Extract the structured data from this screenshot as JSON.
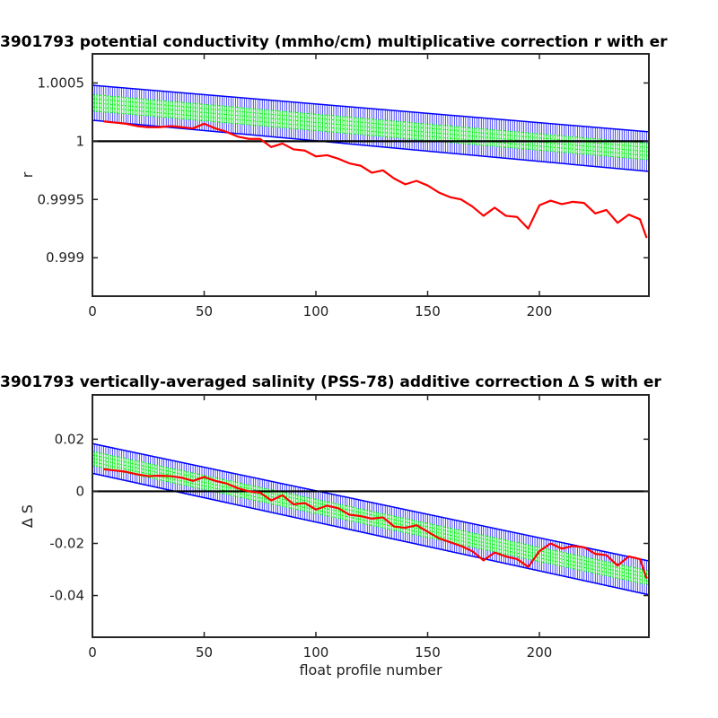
{
  "chart_data": [
    {
      "type": "line",
      "title": "3901793 potential conductivity (mmho/cm) multiplicative correction r with er",
      "xlabel": "",
      "ylabel": "r",
      "xlim": [
        0,
        249
      ],
      "ylim": [
        0.99867,
        1.00075
      ],
      "xticks": [
        0,
        50,
        100,
        150,
        200
      ],
      "xtick_labels": [
        "0",
        "50",
        "100",
        "150",
        "200"
      ],
      "yticks": [
        0.999,
        0.9995,
        1.0,
        1.0005
      ],
      "ytick_labels": [
        "0.999",
        "0.9995",
        "1",
        "1.0005"
      ],
      "reference_line": 1.0,
      "fit_start": 1.00033,
      "fit_slope": -1.685e-06,
      "envelope_halfwidth_start": 0.00015,
      "envelope_halfwidth_end": 0.00017,
      "green_halfwidth": 7e-05,
      "grid": false,
      "colors": {
        "envelope": "#0000ff",
        "fit": "#00ff00",
        "data": "#ff0000",
        "reference": "#000000"
      },
      "series": [
        {
          "x": [
            5,
            10,
            15,
            20,
            25,
            30,
            35,
            40,
            45,
            50,
            55,
            60,
            65,
            70,
            75,
            80,
            85,
            90,
            95,
            100,
            105,
            110,
            115,
            120,
            125,
            130,
            135,
            140,
            145,
            150,
            155,
            160,
            165,
            170,
            175,
            180,
            185,
            190,
            195,
            200,
            205,
            210,
            215,
            220,
            225,
            230,
            235,
            240,
            245,
            248
          ],
          "values": [
            1.00017,
            1.00016,
            1.00015,
            1.00013,
            1.00012,
            1.00012,
            1.00013,
            1.00012,
            1.00011,
            1.00015,
            1.00011,
            1.00008,
            1.00004,
            1.00002,
            1.00002,
            0.99995,
            0.99998,
            0.99993,
            0.99992,
            0.99987,
            0.99988,
            0.99985,
            0.99981,
            0.99979,
            0.99973,
            0.99975,
            0.99968,
            0.99963,
            0.99966,
            0.99962,
            0.99956,
            0.99952,
            0.9995,
            0.99944,
            0.99936,
            0.99943,
            0.99936,
            0.99935,
            0.99925,
            0.99945,
            0.99949,
            0.99946,
            0.99948,
            0.99947,
            0.99938,
            0.99941,
            0.9993,
            0.99937,
            0.99933,
            0.99917
          ]
        }
      ]
    },
    {
      "type": "line",
      "title": "3901793 vertically-averaged salinity (PSS-78) additive correction ∆ S with er",
      "xlabel": "float profile number",
      "ylabel": "∆ S",
      "xlim": [
        0,
        249
      ],
      "ylim": [
        -0.056,
        0.037
      ],
      "xticks": [
        0,
        50,
        100,
        150,
        200
      ],
      "xtick_labels": [
        "0",
        "50",
        "100",
        "150",
        "200"
      ],
      "yticks": [
        -0.04,
        -0.02,
        0,
        0.02
      ],
      "ytick_labels": [
        "-0.04",
        "-0.02",
        "0",
        "0.02"
      ],
      "reference_line": 0,
      "fit_start": 0.0126,
      "fit_slope": -0.000184,
      "envelope_halfwidth_start": 0.0057,
      "envelope_halfwidth_end": 0.0065,
      "green_halfwidth": 0.0027,
      "grid": false,
      "colors": {
        "envelope": "#0000ff",
        "fit": "#00ff00",
        "data": "#ff0000",
        "reference": "#000000"
      },
      "series": [
        {
          "x": [
            5,
            10,
            15,
            20,
            25,
            30,
            35,
            40,
            45,
            50,
            55,
            60,
            65,
            70,
            75,
            80,
            85,
            90,
            95,
            100,
            105,
            110,
            115,
            120,
            125,
            130,
            135,
            140,
            145,
            150,
            155,
            160,
            165,
            170,
            175,
            180,
            185,
            190,
            195,
            200,
            205,
            210,
            215,
            220,
            225,
            230,
            235,
            240,
            245,
            248
          ],
          "values": [
            0.0085,
            0.008,
            0.0075,
            0.0065,
            0.0058,
            0.006,
            0.0058,
            0.0052,
            0.004,
            0.0055,
            0.004,
            0.003,
            0.0012,
            0.0,
            -0.0005,
            -0.0035,
            -0.0015,
            -0.005,
            -0.0045,
            -0.007,
            -0.0055,
            -0.0065,
            -0.009,
            -0.0095,
            -0.0105,
            -0.01,
            -0.0135,
            -0.014,
            -0.013,
            -0.0155,
            -0.018,
            -0.0195,
            -0.021,
            -0.023,
            -0.0265,
            -0.0235,
            -0.025,
            -0.026,
            -0.029,
            -0.023,
            -0.02,
            -0.022,
            -0.021,
            -0.0215,
            -0.024,
            -0.0245,
            -0.0285,
            -0.025,
            -0.026,
            -0.0335
          ]
        }
      ]
    }
  ]
}
